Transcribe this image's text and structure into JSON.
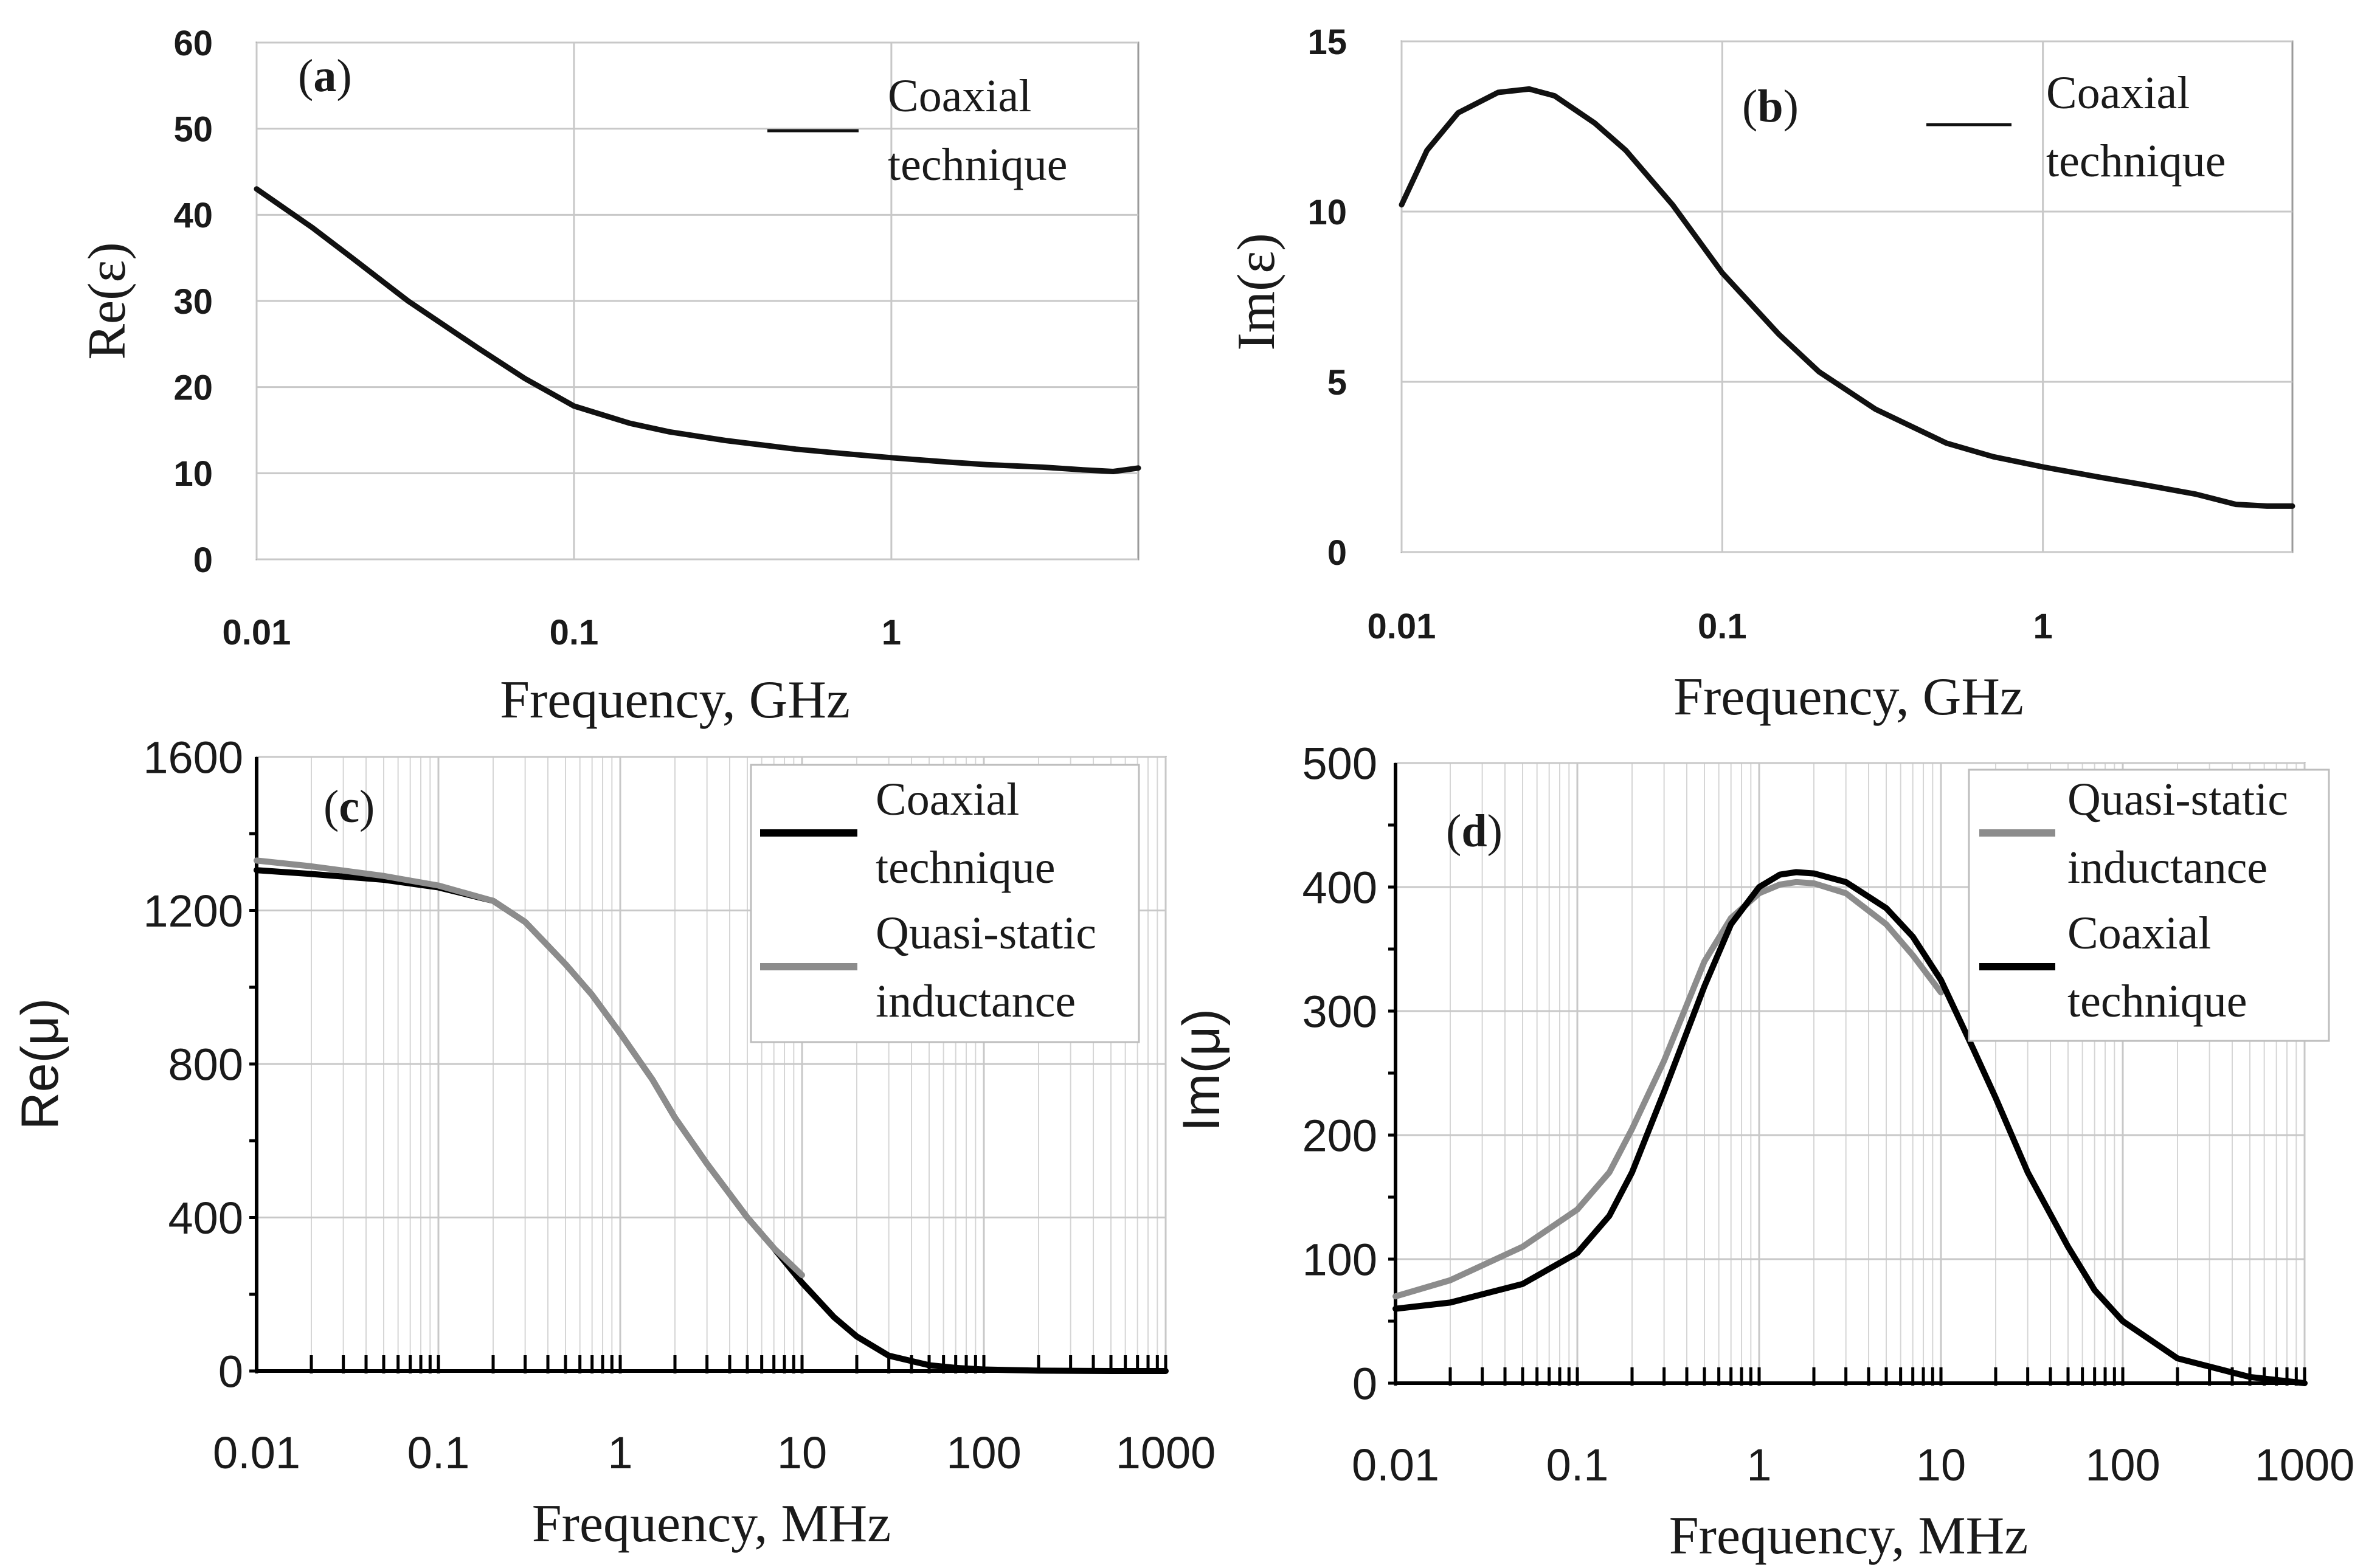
{
  "chart_data": [
    {
      "type": "line",
      "panel_label": "a",
      "xlabel": "Frequency, GHz",
      "ylabel": "Re(ε)",
      "xscale": "log",
      "xlim": [
        0.01,
        6
      ],
      "ylim": [
        0,
        60
      ],
      "x_ticks": [
        0.01,
        0.1,
        1
      ],
      "x_tick_labels": [
        "0.01",
        "0.1",
        "1"
      ],
      "y_ticks": [
        0,
        10,
        20,
        30,
        40,
        50,
        60
      ],
      "y_tick_labels": [
        "0",
        "10",
        "20",
        "30",
        "40",
        "50",
        "60"
      ],
      "legend_position": "top-right",
      "series": [
        {
          "name_lines": [
            "Coaxial",
            "technique"
          ],
          "color": "#111111",
          "x": [
            0.01,
            0.015,
            0.02,
            0.03,
            0.05,
            0.07,
            0.1,
            0.15,
            0.2,
            0.3,
            0.5,
            0.7,
            1,
            1.5,
            2,
            3,
            4,
            5,
            6
          ],
          "y": [
            43,
            38.5,
            35,
            30,
            24.5,
            21,
            17.8,
            15.8,
            14.8,
            13.8,
            12.8,
            12.3,
            11.8,
            11.3,
            11.0,
            10.7,
            10.4,
            10.2,
            10.6
          ]
        }
      ]
    },
    {
      "type": "line",
      "panel_label": "b",
      "xlabel": "Frequency, GHz",
      "ylabel": "Im(ε)",
      "xscale": "log",
      "xlim": [
        0.01,
        6
      ],
      "ylim": [
        0,
        15
      ],
      "x_ticks": [
        0.01,
        0.1,
        1
      ],
      "x_tick_labels": [
        "0.01",
        "0.1",
        "1"
      ],
      "y_ticks": [
        0,
        5,
        10,
        15
      ],
      "y_tick_labels": [
        "0",
        "5",
        "10",
        "15"
      ],
      "legend_position": "top-right",
      "series": [
        {
          "name_lines": [
            "Coaxial",
            "technique"
          ],
          "color": "#111111",
          "x": [
            0.01,
            0.012,
            0.015,
            0.02,
            0.025,
            0.03,
            0.04,
            0.05,
            0.07,
            0.1,
            0.15,
            0.2,
            0.3,
            0.5,
            0.7,
            1,
            1.5,
            2,
            3,
            4,
            5,
            6
          ],
          "y": [
            10.2,
            11.8,
            12.9,
            13.5,
            13.6,
            13.4,
            12.6,
            11.8,
            10.2,
            8.2,
            6.4,
            5.3,
            4.2,
            3.2,
            2.8,
            2.5,
            2.2,
            2.0,
            1.7,
            1.4,
            1.35,
            1.35
          ]
        }
      ]
    },
    {
      "type": "line",
      "panel_label": "c",
      "xlabel": "Frequency, MHz",
      "ylabel": "Re(μ)",
      "xscale": "log",
      "xlim": [
        0.01,
        1000
      ],
      "ylim": [
        0,
        1600
      ],
      "x_ticks": [
        0.01,
        0.1,
        1,
        10,
        100,
        1000
      ],
      "x_tick_labels": [
        "0.01",
        "0.1",
        "1",
        "10",
        "100",
        "1000"
      ],
      "y_ticks": [
        0,
        400,
        800,
        1200,
        1600
      ],
      "y_tick_labels": [
        "0",
        "400",
        "800",
        "1200",
        "1600"
      ],
      "grid": true,
      "legend_position": "top-right",
      "series": [
        {
          "name_lines": [
            "Coaxial",
            "technique"
          ],
          "color": "#000000",
          "x": [
            0.01,
            0.02,
            0.05,
            0.1,
            0.2,
            0.3,
            0.5,
            0.7,
            1,
            1.5,
            2,
            3,
            5,
            7,
            10,
            15,
            20,
            30,
            50,
            70,
            100,
            200,
            500,
            1000
          ],
          "y": [
            1305,
            1295,
            1280,
            1260,
            1225,
            1170,
            1060,
            980,
            880,
            760,
            660,
            540,
            400,
            320,
            230,
            140,
            90,
            40,
            15,
            8,
            4,
            1,
            0,
            0
          ]
        },
        {
          "name_lines": [
            "Quasi-static",
            "inductance"
          ],
          "color": "#8c8c8c",
          "x": [
            0.01,
            0.02,
            0.05,
            0.1,
            0.2,
            0.3,
            0.5,
            0.7,
            1,
            1.5,
            2,
            3,
            5,
            7,
            10
          ],
          "y": [
            1330,
            1315,
            1290,
            1265,
            1225,
            1170,
            1060,
            980,
            880,
            760,
            660,
            540,
            400,
            320,
            250
          ]
        }
      ]
    },
    {
      "type": "line",
      "panel_label": "d",
      "xlabel": "Frequency, MHz",
      "ylabel": "Im(μ)",
      "xscale": "log",
      "xlim": [
        0.01,
        1000
      ],
      "ylim": [
        0,
        500
      ],
      "x_ticks": [
        0.01,
        0.1,
        1,
        10,
        100,
        1000
      ],
      "x_tick_labels": [
        "0.01",
        "0.1",
        "1",
        "10",
        "100",
        "1000"
      ],
      "y_ticks": [
        0,
        100,
        200,
        300,
        400,
        500
      ],
      "y_tick_labels": [
        "0",
        "100",
        "200",
        "300",
        "400",
        "500"
      ],
      "grid": true,
      "legend_position": "top-right",
      "series": [
        {
          "name_lines": [
            "Quasi-static",
            "inductance"
          ],
          "color": "#8c8c8c",
          "x": [
            0.01,
            0.02,
            0.05,
            0.1,
            0.15,
            0.2,
            0.3,
            0.5,
            0.7,
            1,
            1.3,
            1.6,
            2,
            3,
            5,
            7,
            10
          ],
          "y": [
            70,
            83,
            110,
            140,
            170,
            205,
            260,
            340,
            375,
            395,
            402,
            404,
            403,
            395,
            370,
            345,
            315
          ]
        },
        {
          "name_lines": [
            "Coaxial",
            "technique"
          ],
          "color": "#000000",
          "x": [
            0.01,
            0.02,
            0.05,
            0.1,
            0.15,
            0.2,
            0.3,
            0.5,
            0.7,
            1,
            1.3,
            1.6,
            2,
            3,
            5,
            7,
            10,
            15,
            20,
            30,
            50,
            70,
            100,
            200,
            500,
            1000
          ],
          "y": [
            60,
            65,
            80,
            105,
            135,
            170,
            235,
            320,
            370,
            400,
            410,
            412,
            411,
            404,
            383,
            360,
            325,
            270,
            230,
            170,
            110,
            75,
            50,
            20,
            5,
            0
          ]
        }
      ]
    }
  ]
}
